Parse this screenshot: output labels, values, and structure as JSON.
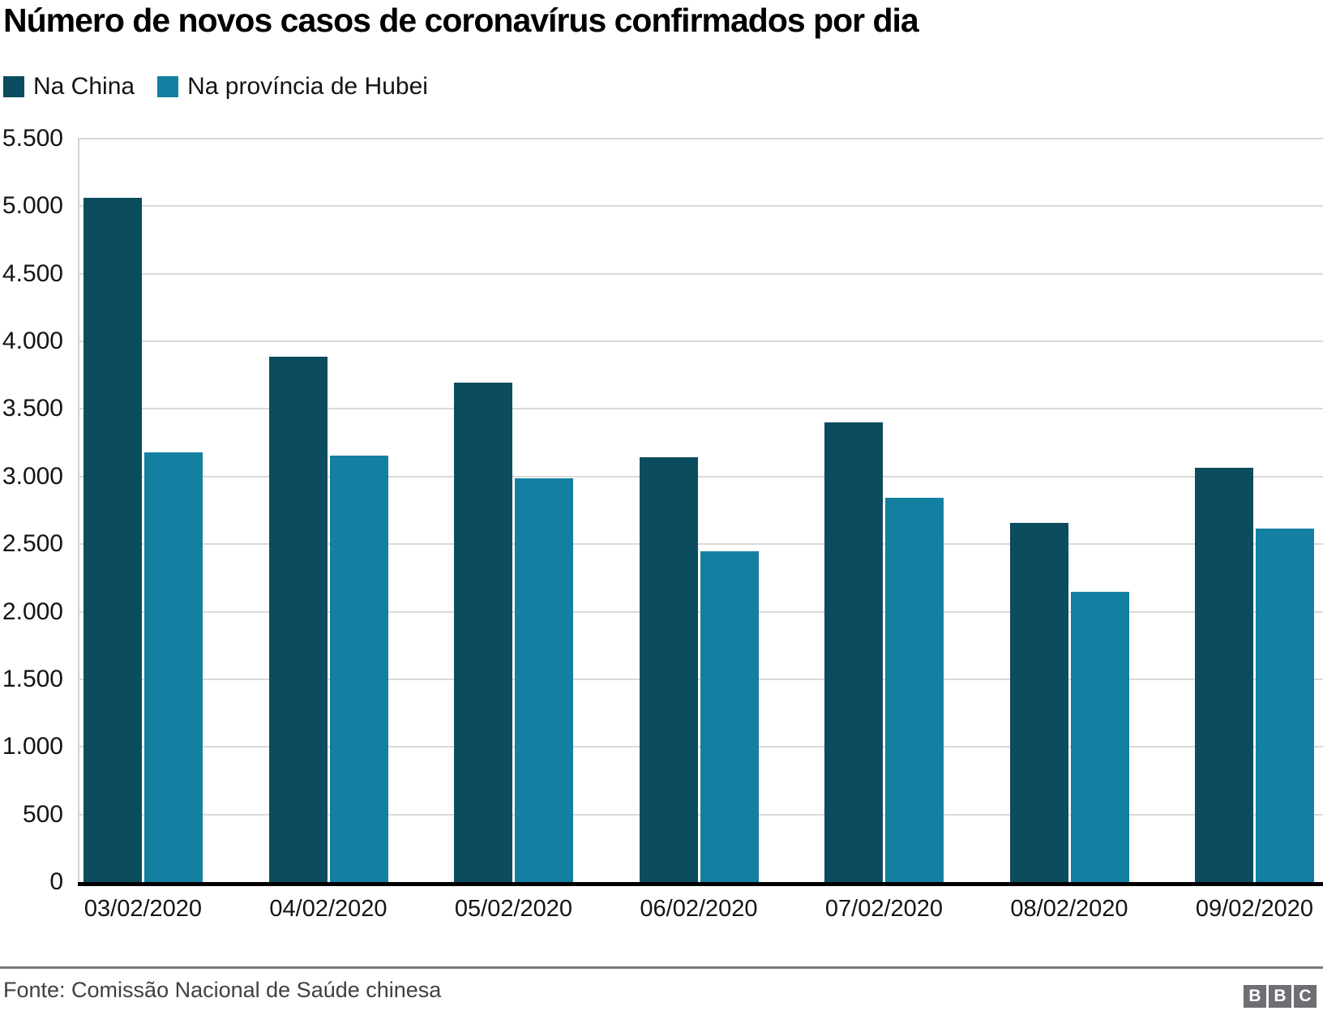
{
  "title": "Número de novos casos de coronavírus confirmados por dia",
  "chart_data": {
    "type": "bar",
    "title": "Número de novos casos de coronavírus confirmados por dia",
    "categories": [
      "03/02/2020",
      "04/02/2020",
      "05/02/2020",
      "06/02/2020",
      "07/02/2020",
      "08/02/2020",
      "09/02/2020"
    ],
    "series": [
      {
        "name": "Na China",
        "color": "#0b4c5f",
        "values": [
          5060,
          3887,
          3694,
          3143,
          3399,
          2656,
          3062
        ]
      },
      {
        "name": "Na província de Hubei",
        "color": "#1380a1",
        "values": [
          3180,
          3156,
          2987,
          2447,
          2841,
          2147,
          2618
        ]
      }
    ],
    "xlabel": "",
    "ylabel": "",
    "ylim": [
      0,
      5500
    ],
    "yticks": [
      0,
      500,
      1000,
      1500,
      2000,
      2500,
      3000,
      3500,
      4000,
      4500,
      5000,
      5500
    ],
    "ytick_labels": [
      "0",
      "500",
      "1.000",
      "1.500",
      "2.000",
      "2.500",
      "3.000",
      "3.500",
      "4.000",
      "4.500",
      "5.000",
      "5.500"
    ],
    "grid": "horizontal",
    "legend_position": "top-left"
  },
  "legend": [
    {
      "label": "Na China",
      "color": "#0b4c5f"
    },
    {
      "label": "Na província de Hubei",
      "color": "#1380a1"
    }
  ],
  "footer": {
    "source": "Fonte: Comissão Nacional de Saúde chinesa",
    "logo_letters": [
      "B",
      "B",
      "C"
    ]
  },
  "colors": {
    "series_china": "#0b4c5f",
    "series_hubei": "#1380a1",
    "gridline": "#d9d9d9",
    "axis_baseline": "#000000",
    "footer_divider": "#7a7a7a",
    "logo_background": "#6e6e73",
    "text": "#141414"
  }
}
